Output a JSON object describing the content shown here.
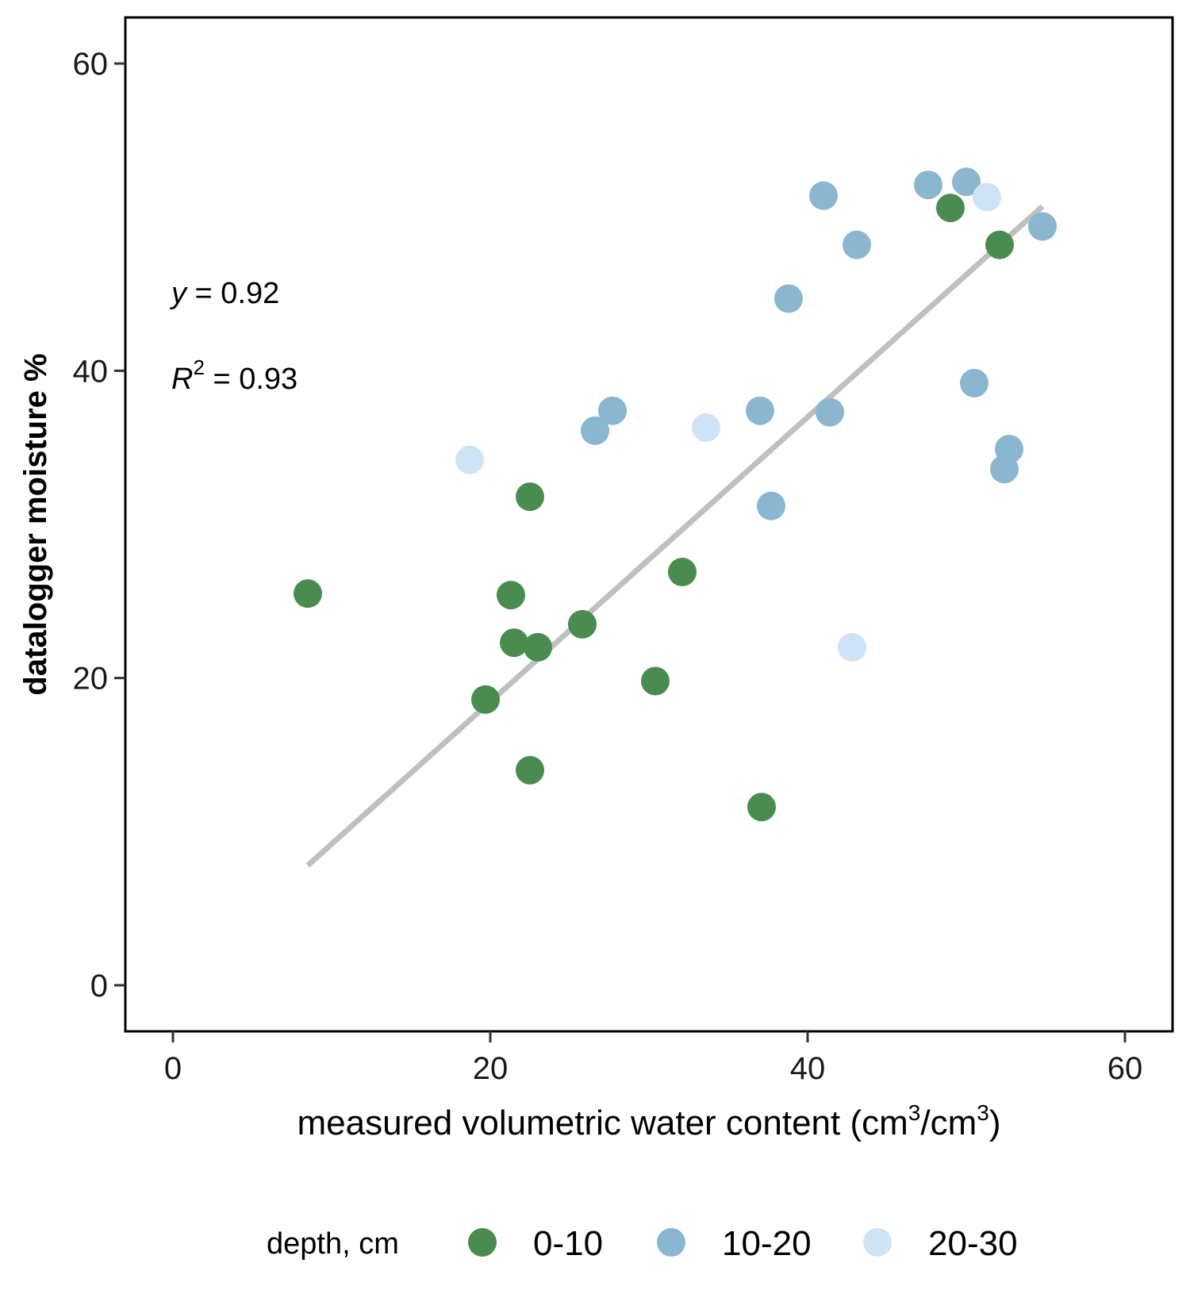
{
  "chart_data": {
    "type": "scatter",
    "xlabel": "measured volumetric water content (cm",
    "xlabel_sup1": "3",
    "xlabel_mid": "/cm",
    "xlabel_sup2": "3",
    "xlabel_end": ")",
    "ylabel": "datalogger moisture %",
    "xlim": [
      -3,
      63
    ],
    "ylim": [
      -3,
      63
    ],
    "x_ticks": [
      0,
      20,
      40,
      60
    ],
    "y_ticks": [
      0,
      20,
      40,
      60
    ],
    "x_tick_labels": [
      "0",
      "20",
      "40",
      "60"
    ],
    "y_tick_labels": [
      "0",
      "20",
      "40",
      "60"
    ],
    "grid": false,
    "annotations": {
      "slope_var": "y",
      "slope_text": " = 0.92",
      "r2_var": "R",
      "r2_sup": "2",
      "r2_text": " = 0.93"
    },
    "fit_line": {
      "x": [
        8.5,
        54.8
      ],
      "y": [
        7.8,
        50.7
      ],
      "color": "#bfbfbf"
    },
    "legend": {
      "title": "depth, cm",
      "position": "bottom"
    },
    "series": [
      {
        "name": "0-10",
        "color": "#4a8c4f",
        "points": [
          [
            8.5,
            25.5
          ],
          [
            19.7,
            18.6
          ],
          [
            21.3,
            25.4
          ],
          [
            21.5,
            22.3
          ],
          [
            23.0,
            22.0
          ],
          [
            22.5,
            31.8
          ],
          [
            22.5,
            14.0
          ],
          [
            25.8,
            23.5
          ],
          [
            30.4,
            19.8
          ],
          [
            32.1,
            26.9
          ],
          [
            37.1,
            11.6
          ],
          [
            49.0,
            50.6
          ],
          [
            52.1,
            48.2
          ]
        ]
      },
      {
        "name": "10-20",
        "color": "#8ab6cf",
        "points": [
          [
            26.6,
            36.1
          ],
          [
            27.7,
            37.4
          ],
          [
            37.0,
            37.4
          ],
          [
            37.7,
            31.2
          ],
          [
            38.8,
            44.7
          ],
          [
            41.0,
            51.4
          ],
          [
            41.4,
            37.3
          ],
          [
            43.1,
            48.2
          ],
          [
            47.6,
            52.1
          ],
          [
            50.0,
            52.3
          ],
          [
            50.5,
            39.2
          ],
          [
            52.4,
            33.6
          ],
          [
            52.7,
            34.9
          ],
          [
            54.8,
            49.4
          ]
        ]
      },
      {
        "name": "20-30",
        "color": "#cfe3f6",
        "points": [
          [
            18.7,
            34.2
          ],
          [
            33.6,
            36.3
          ],
          [
            42.8,
            22.0
          ],
          [
            51.3,
            51.3
          ]
        ]
      }
    ]
  }
}
